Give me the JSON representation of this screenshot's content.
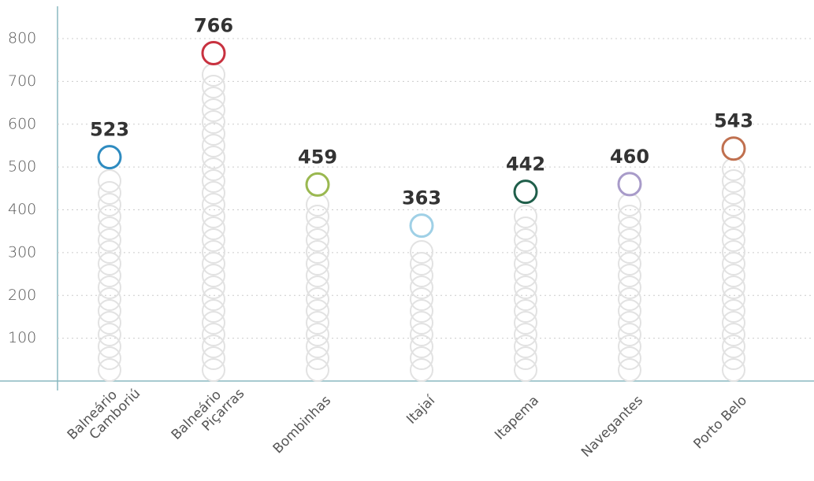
{
  "chart_data": {
    "type": "lollipop",
    "categories": [
      "Balneário\nCamboriú",
      "Balneário\nPiçarras",
      "Bombinhas",
      "Itajaí",
      "Itapema",
      "Navegantes",
      "Porto Belo"
    ],
    "values": [
      523,
      766,
      459,
      363,
      442,
      460,
      543
    ],
    "colors": [
      "#2e8bc0",
      "#c8313f",
      "#9ab850",
      "#9fd0e6",
      "#1f5e4a",
      "#a89bc9",
      "#c0704f"
    ],
    "ylim": [
      0,
      800
    ],
    "yticks": [
      100,
      200,
      300,
      400,
      500,
      600,
      700,
      800
    ],
    "grid": true
  }
}
